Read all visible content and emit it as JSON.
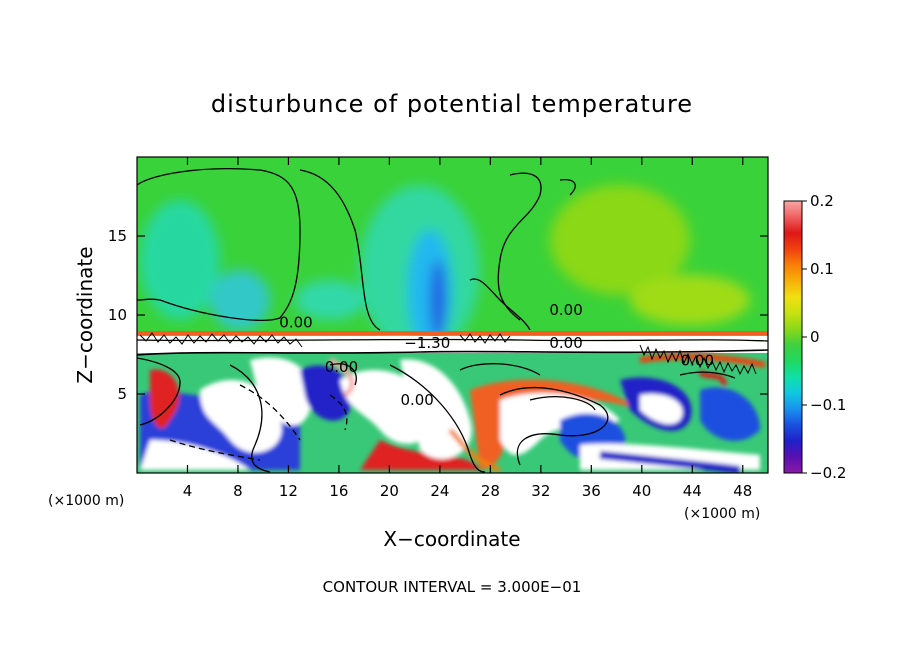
{
  "chart_data": {
    "type": "heatmap",
    "title": "disturbunce of potential temperature",
    "xlabel": "X−coordinate",
    "ylabel": "Z−coordinate",
    "x_unit_left": "(×1000 m)",
    "x_unit_right": "(×1000 m)",
    "footer": "CONTOUR INTERVAL = 3.000E−01",
    "xlim": [
      0,
      50
    ],
    "ylim": [
      0,
      20
    ],
    "x_ticks": [
      4,
      8,
      12,
      16,
      20,
      24,
      28,
      32,
      36,
      40,
      44,
      48
    ],
    "y_ticks": [
      5,
      10,
      15
    ],
    "colorbar": {
      "range": [
        -0.2,
        0.2
      ],
      "ticks": [
        {
          "value": 0.2,
          "label": "0.2"
        },
        {
          "value": 0.1,
          "label": "0.1"
        },
        {
          "value": 0,
          "label": "0"
        },
        {
          "value": -0.1,
          "label": "−0.1"
        },
        {
          "value": -0.2,
          "label": "−0.2"
        }
      ],
      "colors": [
        "#8a1aa8",
        "#5a10b0",
        "#2020c8",
        "#1a50e0",
        "#1a90f0",
        "#10c8e0",
        "#10e0a8",
        "#20d860",
        "#40d040",
        "#8ad818",
        "#c8e010",
        "#f0e010",
        "#f8b008",
        "#f88008",
        "#f04010",
        "#e01818",
        "#f06060",
        "#f8a8a8"
      ]
    },
    "contour_labels": [
      {
        "x": 12.6,
        "z": 9.2,
        "text": "0.00"
      },
      {
        "x": 23.0,
        "z": 7.9,
        "text": "−1.30"
      },
      {
        "x": 34.0,
        "z": 7.9,
        "text": "0.00"
      },
      {
        "x": 34.0,
        "z": 10.0,
        "text": "0.00"
      },
      {
        "x": 16.2,
        "z": 6.4,
        "text": "0.00"
      },
      {
        "x": 22.2,
        "z": 4.3,
        "text": "0.00"
      },
      {
        "x": 44.4,
        "z": 6.8,
        "text": "0.00"
      }
    ]
  }
}
